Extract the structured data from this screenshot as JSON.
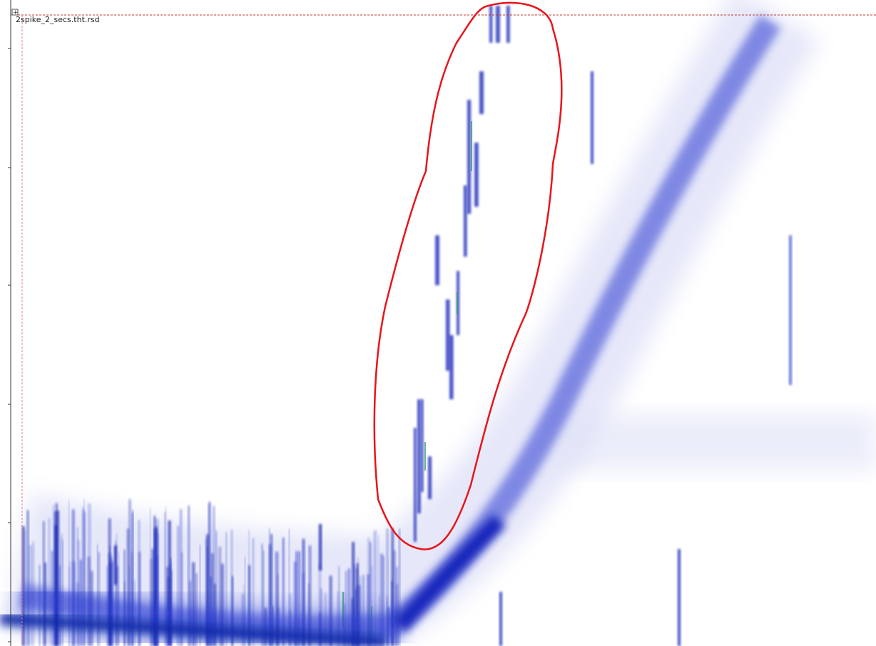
{
  "plot": {
    "file_label": "2spike_2_secs.tht.rsd"
  }
}
